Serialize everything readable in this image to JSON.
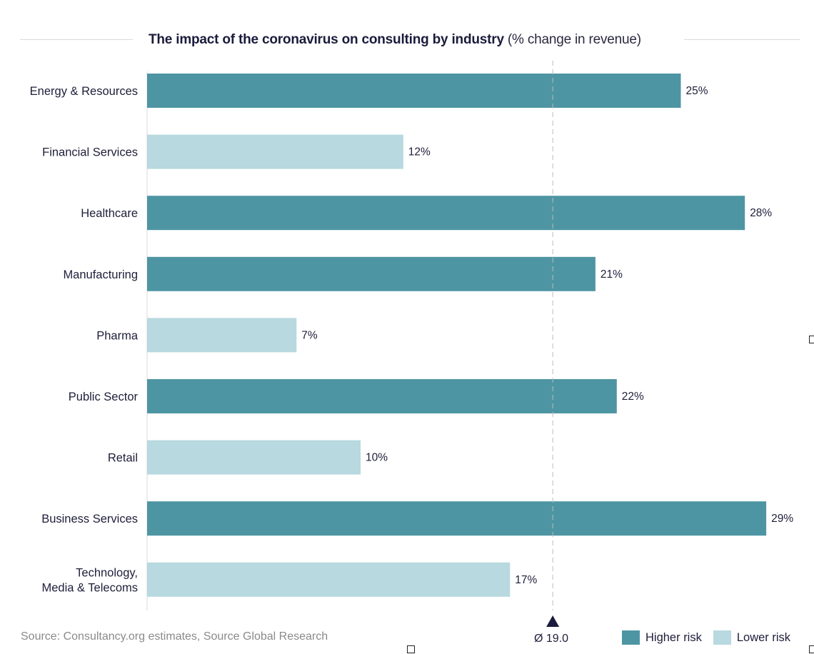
{
  "title": {
    "bold": "The impact of the coronavirus on consulting by industry",
    "light": "(% change in revenue)"
  },
  "colors": {
    "higher_risk": "#4e95a3",
    "lower_risk": "#b7d9df",
    "mean_marker": "#1b1b3d",
    "axis": "#d9d9d9"
  },
  "chart_data": {
    "type": "bar",
    "orientation": "horizontal",
    "title": "The impact of the coronavirus on consulting by industry (% change in revenue)",
    "xlabel": "",
    "ylabel": "",
    "xlim": [
      0,
      30
    ],
    "grid": false,
    "legend_position": "bottom-right",
    "categories": [
      "Energy & Resources",
      "Financial Services",
      "Healthcare",
      "Manufacturing",
      "Pharma",
      "Public Sector",
      "Retail",
      "Business Services",
      "Technology, Media & Telecoms"
    ],
    "category_lines": [
      [
        "Energy & Resources"
      ],
      [
        "Financial Services"
      ],
      [
        "Healthcare"
      ],
      [
        "Manufacturing"
      ],
      [
        "Pharma"
      ],
      [
        "Public Sector"
      ],
      [
        "Retail"
      ],
      [
        "Business Services"
      ],
      [
        "Technology,",
        "Media & Telecoms"
      ]
    ],
    "values": [
      25,
      12,
      28,
      21,
      7,
      22,
      10,
      29,
      17
    ],
    "value_labels": [
      "25%",
      "12%",
      "28%",
      "21%",
      "7%",
      "22%",
      "10%",
      "29%",
      "17%"
    ],
    "risk": [
      "higher",
      "lower",
      "higher",
      "higher",
      "lower",
      "higher",
      "lower",
      "higher",
      "lower"
    ],
    "mean": 19.0,
    "mean_label": "Ø 19.0",
    "legend": [
      {
        "key": "higher",
        "label": "Higher risk"
      },
      {
        "key": "lower",
        "label": "Lower risk"
      }
    ]
  },
  "footer": {
    "source": "Source: Consultancy.org estimates, Source Global Research"
  }
}
